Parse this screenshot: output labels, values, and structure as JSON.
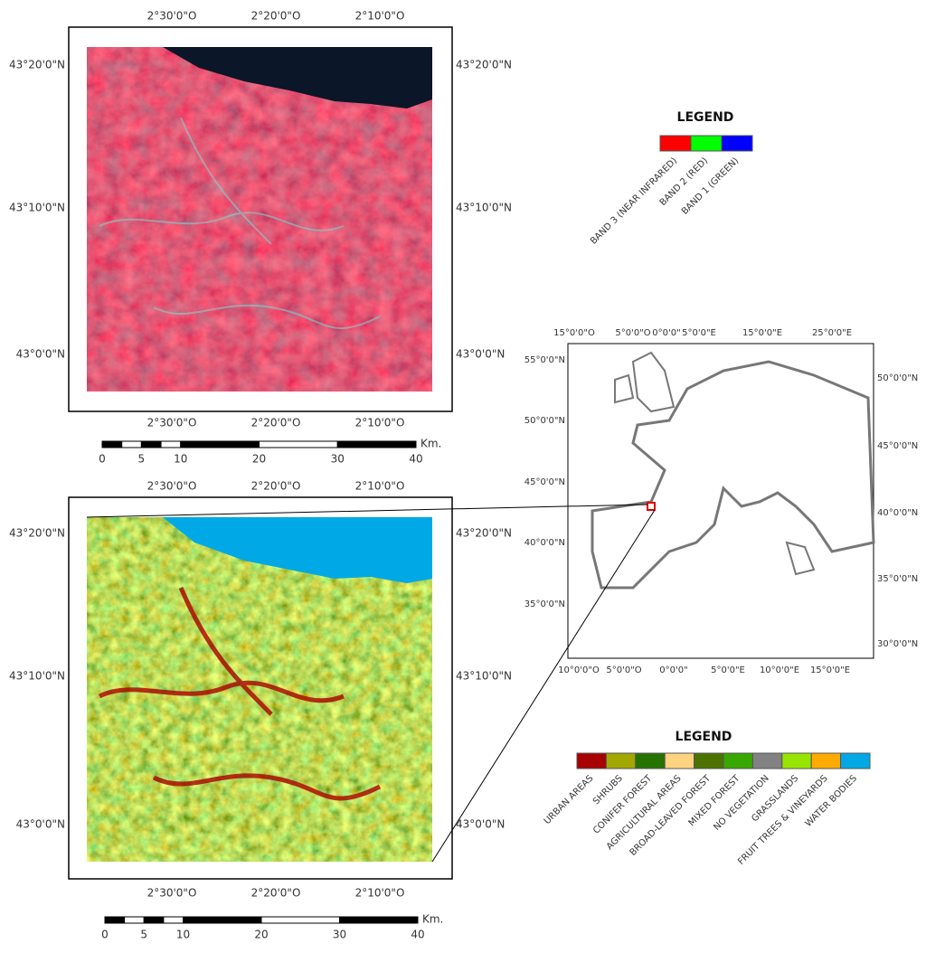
{
  "top_map": {
    "lon_labels": [
      "2°30'0\"O",
      "2°20'0\"O",
      "2°10'0\"O"
    ],
    "lat_labels": [
      "43°20'0\"N",
      "43°10'0\"N",
      "43°0'0\"N"
    ]
  },
  "top_scale_bar": {
    "unit": "Km.",
    "ticks": [
      0,
      5,
      10,
      20,
      30,
      40
    ]
  },
  "band_legend": {
    "title": "LEGEND",
    "items": [
      {
        "label": "BAND 3 (NEAR INFRARED)",
        "color": "#ff0000"
      },
      {
        "label": "BAND 2 (RED)",
        "color": "#00ff00"
      },
      {
        "label": "BAND 1 (GREEN)",
        "color": "#0000ff"
      }
    ]
  },
  "bottom_map": {
    "lon_labels": [
      "2°30'0\"O",
      "2°20'0\"O",
      "2°10'0\"O"
    ],
    "lat_labels": [
      "43°20'0\"N",
      "43°10'0\"N",
      "43°0'0\"N"
    ]
  },
  "bottom_scale_bar": {
    "unit": "Km.",
    "ticks": [
      0,
      5,
      10,
      20,
      30,
      40
    ]
  },
  "inset_map": {
    "top_labels": [
      "15°0'0\"O",
      "5°0'0\"O",
      "0°0'0\"",
      "5°0'0\"E",
      "15°0'0\"E",
      "25°0'0\"E"
    ],
    "bottom_labels": [
      "10°0'0\"O",
      "5°0'0\"O",
      "0°0'0\"",
      "5°0'0\"E",
      "10°0'0\"E",
      "15°0'0\"E"
    ],
    "left_labels": [
      "55°0'0\"N",
      "50°0'0\"N",
      "45°0'0\"N",
      "40°0'0\"N",
      "35°0'0\"N"
    ],
    "right_labels": [
      "50°0'0\"N",
      "45°0'0\"N",
      "40°0'0\"N",
      "35°0'0\"N",
      "30°0'0\"N"
    ]
  },
  "class_legend": {
    "title": "LEGEND",
    "items": [
      {
        "label": "URBAN AREAS",
        "color": "#a80000"
      },
      {
        "label": "SHRUBS",
        "color": "#a3a800"
      },
      {
        "label": "CONIFER FOREST",
        "color": "#267300"
      },
      {
        "label": "AGRICULTURAL AREAS",
        "color": "#ffd37f"
      },
      {
        "label": "BROAD-LEAVED FOREST",
        "color": "#4c7300"
      },
      {
        "label": "MIXED FOREST",
        "color": "#38a800"
      },
      {
        "label": "NO VEGETATION",
        "color": "#828282"
      },
      {
        "label": "GRASSLANDS",
        "color": "#98e600"
      },
      {
        "label": "FRUIT TREES & VINEYARDS",
        "color": "#ffaa00"
      },
      {
        "label": "WATER BODIES",
        "color": "#00a9e6"
      }
    ]
  }
}
